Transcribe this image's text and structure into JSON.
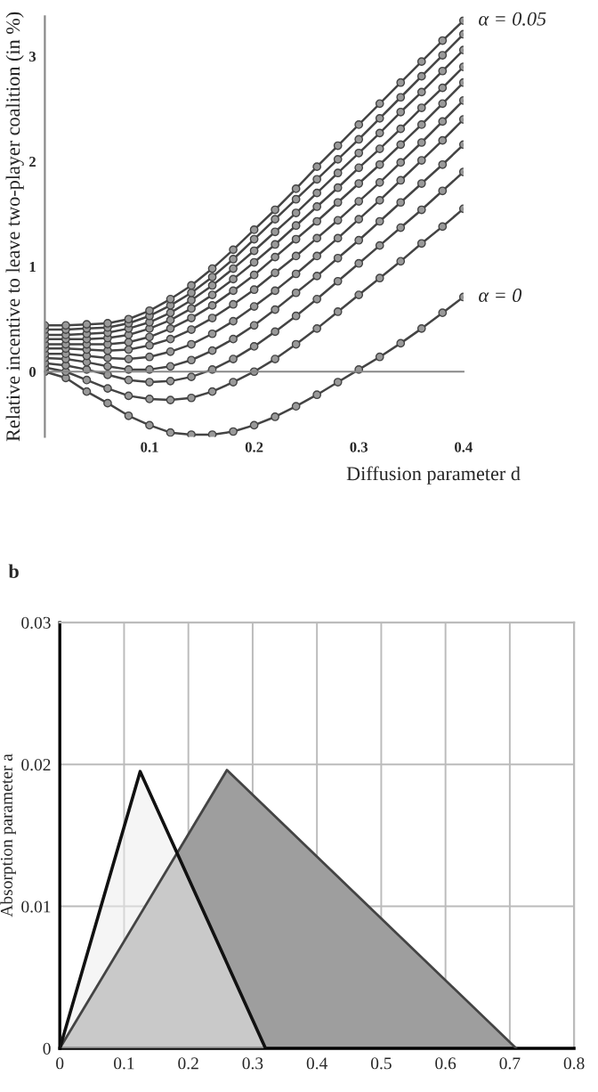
{
  "chart_data": [
    {
      "type": "line",
      "ylabel": "Relative incentive to leave two-player coalition (in %)",
      "xlabel": "Diffusion parameter d",
      "x": [
        0,
        0.02,
        0.04,
        0.06,
        0.08,
        0.1,
        0.12,
        0.14,
        0.16,
        0.18,
        0.2,
        0.22,
        0.24,
        0.26,
        0.28,
        0.3,
        0.32,
        0.34,
        0.36,
        0.38,
        0.4
      ],
      "series": [
        {
          "name": "α = 0",
          "color": "#444444",
          "values": [
            0,
            -0.06,
            -0.19,
            -0.3,
            -0.42,
            -0.51,
            -0.58,
            -0.6,
            -0.6,
            -0.57,
            -0.51,
            -0.43,
            -0.33,
            -0.22,
            -0.1,
            0.02,
            0.14,
            0.27,
            0.41,
            0.56,
            0.71
          ]
        },
        {
          "color": "#444444",
          "values": [
            0.04,
            0,
            -0.08,
            -0.16,
            -0.23,
            -0.26,
            -0.27,
            -0.25,
            -0.19,
            -0.1,
            0,
            0.12,
            0.26,
            0.41,
            0.57,
            0.73,
            0.89,
            1.05,
            1.22,
            1.38,
            1.55
          ]
        },
        {
          "color": "#444444",
          "values": [
            0.08,
            0.06,
            0.02,
            -0.03,
            -0.08,
            -0.1,
            -0.09,
            -0.05,
            0.02,
            0.12,
            0.24,
            0.38,
            0.53,
            0.69,
            0.86,
            1.03,
            1.2,
            1.37,
            1.54,
            1.72,
            1.9
          ]
        },
        {
          "color": "#444444",
          "values": [
            0.13,
            0.12,
            0.09,
            0.05,
            0.02,
            0.02,
            0.05,
            0.11,
            0.2,
            0.31,
            0.44,
            0.59,
            0.75,
            0.91,
            1.08,
            1.25,
            1.43,
            1.61,
            1.79,
            1.97,
            2.16
          ]
        },
        {
          "color": "#444444",
          "values": [
            0.17,
            0.17,
            0.15,
            0.13,
            0.12,
            0.14,
            0.19,
            0.26,
            0.36,
            0.48,
            0.62,
            0.77,
            0.93,
            1.1,
            1.27,
            1.45,
            1.63,
            1.82,
            2.01,
            2.2,
            2.4
          ]
        },
        {
          "color": "#444444",
          "values": [
            0.22,
            0.22,
            0.21,
            0.2,
            0.21,
            0.25,
            0.31,
            0.4,
            0.51,
            0.64,
            0.78,
            0.94,
            1.1,
            1.27,
            1.44,
            1.62,
            1.8,
            1.99,
            2.18,
            2.38,
            2.58
          ]
        },
        {
          "color": "#444444",
          "values": [
            0.26,
            0.26,
            0.26,
            0.26,
            0.28,
            0.33,
            0.41,
            0.51,
            0.63,
            0.77,
            0.92,
            1.09,
            1.26,
            1.43,
            1.61,
            1.79,
            1.97,
            2.16,
            2.35,
            2.55,
            2.75
          ]
        },
        {
          "color": "#444444",
          "values": [
            0.31,
            0.31,
            0.31,
            0.32,
            0.35,
            0.41,
            0.49,
            0.6,
            0.73,
            0.88,
            1.04,
            1.21,
            1.39,
            1.57,
            1.75,
            1.94,
            2.12,
            2.31,
            2.51,
            2.7,
            2.9
          ]
        },
        {
          "color": "#444444",
          "values": [
            0.35,
            0.35,
            0.36,
            0.37,
            0.41,
            0.47,
            0.56,
            0.68,
            0.82,
            0.98,
            1.15,
            1.33,
            1.51,
            1.7,
            1.89,
            2.08,
            2.27,
            2.47,
            2.66,
            2.86,
            3.06
          ]
        },
        {
          "color": "#444444",
          "values": [
            0.4,
            0.4,
            0.41,
            0.42,
            0.46,
            0.53,
            0.63,
            0.75,
            0.9,
            1.07,
            1.26,
            1.45,
            1.64,
            1.83,
            2.02,
            2.21,
            2.41,
            2.61,
            2.81,
            3.01,
            3.21
          ]
        },
        {
          "name": "α = 0.05",
          "color": "#444444",
          "values": [
            0.44,
            0.44,
            0.45,
            0.46,
            0.5,
            0.58,
            0.69,
            0.82,
            0.98,
            1.16,
            1.35,
            1.54,
            1.74,
            1.95,
            2.15,
            2.35,
            2.55,
            2.75,
            2.95,
            3.15,
            3.34
          ]
        }
      ],
      "xlim": [
        0,
        0.4
      ],
      "ylim": [
        -0.62,
        3.38
      ],
      "xticks": [
        0.1,
        0.2,
        0.3,
        0.4
      ],
      "yticks": [
        0,
        1,
        2,
        3
      ],
      "marker": "circle",
      "line_style": "solid",
      "legend": false
    },
    {
      "type": "area",
      "title": "b",
      "ylabel": "Absorption parameter a",
      "series": [
        {
          "color": "#9e9e9e",
          "x": [
            0,
            0.26,
            0.71
          ],
          "values": [
            0,
            0.0196,
            0
          ]
        },
        {
          "color": "#ececec",
          "x": [
            0,
            0.125,
            0.32
          ],
          "values": [
            0,
            0.0195,
            0
          ]
        }
      ],
      "xlim": [
        0,
        0.8
      ],
      "ylim": [
        0,
        0.03
      ],
      "xticks": [
        0,
        0.1,
        0.2,
        0.3,
        0.4,
        0.5,
        0.6,
        0.7,
        0.8
      ],
      "yticks": [
        0,
        0.01,
        0.02,
        0.03
      ],
      "grid": true,
      "legend": false
    }
  ]
}
